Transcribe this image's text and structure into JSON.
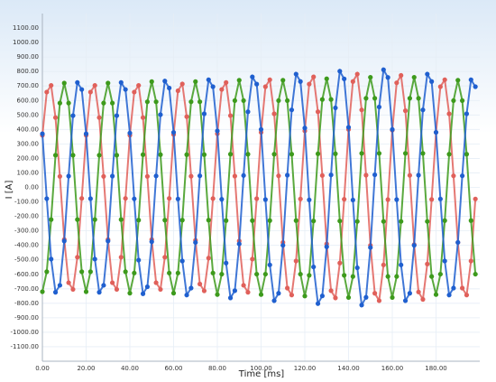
{
  "chart_data": {
    "type": "line",
    "x_label": "Time [ms]",
    "y_label": "I [A]",
    "xlim": [
      0,
      200
    ],
    "ylim": [
      -1200,
      1200
    ],
    "grid": true,
    "markers": true,
    "xticks": [
      {
        "value": 0,
        "label": "0.00"
      },
      {
        "value": 20,
        "label": "20.00"
      },
      {
        "value": 40,
        "label": "40.00"
      },
      {
        "value": 60,
        "label": "60.00"
      },
      {
        "value": 80,
        "label": "80.00"
      },
      {
        "value": 100,
        "label": "100.00"
      },
      {
        "value": 120,
        "label": "120.00"
      },
      {
        "value": 140,
        "label": "140.00"
      },
      {
        "value": 160,
        "label": "160.00"
      },
      {
        "value": 180,
        "label": "180.00"
      }
    ],
    "yticks": [
      {
        "value": -1100,
        "label": "-1100.00"
      },
      {
        "value": -1000,
        "label": "-1000.00"
      },
      {
        "value": -900,
        "label": "-900.00"
      },
      {
        "value": -800,
        "label": "-800.00"
      },
      {
        "value": -700,
        "label": "-700.00"
      },
      {
        "value": -600,
        "label": "-600.00"
      },
      {
        "value": -500,
        "label": "-500.00"
      },
      {
        "value": -400,
        "label": "-400.00"
      },
      {
        "value": -300,
        "label": "-300.00"
      },
      {
        "value": -200,
        "label": "-200.00"
      },
      {
        "value": -100,
        "label": "-100.00"
      },
      {
        "value": 0,
        "label": "0.00"
      },
      {
        "value": 100,
        "label": "100.00"
      },
      {
        "value": 200,
        "label": "200.00"
      },
      {
        "value": 300,
        "label": "300.00"
      },
      {
        "value": 400,
        "label": "400.00"
      },
      {
        "value": 500,
        "label": "500.00"
      },
      {
        "value": 600,
        "label": "600.00"
      },
      {
        "value": 700,
        "label": "700.00"
      },
      {
        "value": 800,
        "label": "800.00"
      },
      {
        "value": 900,
        "label": "900.00"
      },
      {
        "value": 1000,
        "label": "1000.00"
      },
      {
        "value": 1100,
        "label": "1100.00"
      }
    ],
    "x": [
      0,
      2,
      4,
      6,
      8,
      10,
      12,
      14,
      16,
      18,
      20,
      22,
      24,
      26,
      28,
      30,
      32,
      34,
      36,
      38,
      40,
      42,
      44,
      46,
      48,
      50,
      52,
      54,
      56,
      58,
      60,
      62,
      64,
      66,
      68,
      70,
      72,
      74,
      76,
      78,
      80,
      82,
      84,
      86,
      88,
      90,
      92,
      94,
      96,
      98,
      100,
      102,
      104,
      106,
      108,
      110,
      112,
      114,
      116,
      118,
      120,
      122,
      124,
      126,
      128,
      130,
      132,
      134,
      136,
      138,
      140,
      142,
      144,
      146,
      148,
      150,
      152,
      154,
      156,
      158,
      160,
      162,
      164,
      166,
      168,
      170,
      172,
      174,
      176,
      178,
      180,
      182,
      184,
      186,
      188,
      190,
      192,
      194,
      196,
      198
    ],
    "series": [
      {
        "color": "#e0605a",
        "values": [
          360,
          658,
          704,
          482,
          76,
          -360,
          -658,
          -704,
          -482,
          -76,
          360,
          658,
          704,
          482,
          76,
          -360,
          -658,
          -704,
          -482,
          -76,
          360,
          658,
          704,
          482,
          76,
          -360,
          -658,
          -704,
          -482,
          -76,
          365,
          667,
          714,
          488,
          77,
          -365,
          -667,
          -714,
          -488,
          -77,
          370,
          676,
          724,
          495,
          78,
          -370,
          -676,
          -724,
          -495,
          -78,
          380,
          695,
          743,
          508,
          80,
          -380,
          -695,
          -743,
          -508,
          -80,
          390,
          713,
          763,
          522,
          82,
          -390,
          -713,
          -763,
          -522,
          -82,
          400,
          731,
          782,
          535,
          84,
          -400,
          -731,
          -782,
          -535,
          -84,
          395,
          722,
          773,
          529,
          83,
          -395,
          -722,
          -773,
          -529,
          -83,
          380,
          695,
          743,
          508,
          80,
          -380,
          -695,
          -743,
          -508,
          -80
        ]
      },
      {
        "color": "#3d9a1c",
        "values": [
          -720,
          -582,
          -222,
          222,
          582,
          720,
          582,
          222,
          -222,
          -582,
          -720,
          -582,
          -222,
          222,
          582,
          720,
          582,
          222,
          -222,
          -582,
          -730,
          -591,
          -226,
          226,
          591,
          730,
          591,
          226,
          -226,
          -591,
          -730,
          -591,
          -226,
          226,
          591,
          730,
          591,
          226,
          -226,
          -591,
          -740,
          -599,
          -229,
          229,
          599,
          740,
          599,
          229,
          -229,
          -599,
          -740,
          -599,
          -229,
          229,
          599,
          740,
          599,
          229,
          -229,
          -599,
          -750,
          -607,
          -232,
          232,
          607,
          750,
          607,
          232,
          -232,
          -607,
          -760,
          -615,
          -235,
          235,
          615,
          760,
          615,
          235,
          -235,
          -615,
          -760,
          -615,
          -235,
          235,
          615,
          760,
          615,
          235,
          -235,
          -615,
          -740,
          -599,
          -229,
          229,
          599,
          740,
          599,
          229,
          -229,
          -599
        ]
      },
      {
        "color": "#1f5fcf",
        "values": [
          370,
          -78,
          -495,
          -724,
          -676,
          -370,
          78,
          495,
          724,
          676,
          370,
          -78,
          -495,
          -724,
          -676,
          -370,
          78,
          495,
          724,
          676,
          375,
          -79,
          -502,
          -734,
          -686,
          -375,
          79,
          502,
          734,
          686,
          380,
          -80,
          -508,
          -743,
          -695,
          -380,
          80,
          508,
          743,
          695,
          390,
          -82,
          -522,
          -763,
          -713,
          -390,
          82,
          522,
          763,
          713,
          400,
          -84,
          -535,
          -782,
          -731,
          -400,
          84,
          535,
          782,
          731,
          410,
          -86,
          -549,
          -802,
          -749,
          -410,
          86,
          549,
          802,
          749,
          415,
          -87,
          -555,
          -812,
          -759,
          -415,
          87,
          555,
          812,
          759,
          400,
          -84,
          -535,
          -782,
          -731,
          -400,
          84,
          535,
          782,
          731,
          380,
          -80,
          -508,
          -743,
          -695,
          -380,
          80,
          508,
          743,
          695
        ]
      }
    ]
  }
}
